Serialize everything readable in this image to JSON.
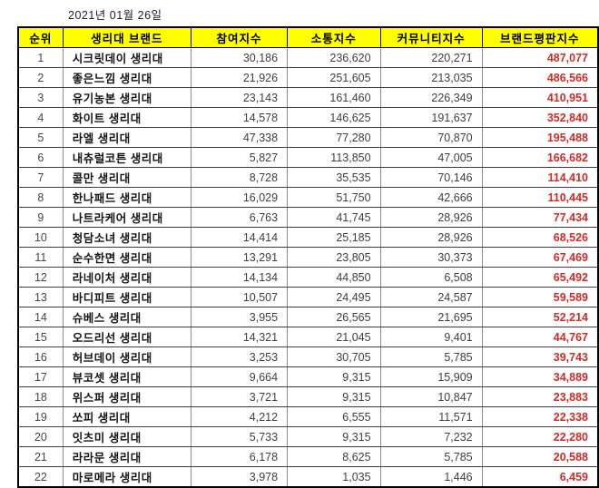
{
  "date_label": "2021년 01월 26일",
  "colors": {
    "header_bg": "#ffff00",
    "header_text": "#000000",
    "body_text": "#3f3f3f",
    "brand_text": "#141414",
    "reputation_red": "#cf2c26",
    "outer_border": "#000000"
  },
  "chart_data": {
    "type": "table",
    "title": "2021년 01월 26일 생리대 브랜드평판지수 순위",
    "columns": [
      "순위",
      "생리대 브랜드",
      "참여지수",
      "소통지수",
      "커뮤니티지수",
      "브랜드평판지수"
    ],
    "column_keys": [
      "rank",
      "brand",
      "participation",
      "communication",
      "community",
      "reputation"
    ],
    "rows": [
      {
        "rank": "1",
        "brand": "시크릿데이 생리대",
        "participation": "30,186",
        "communication": "236,620",
        "community": "220,271",
        "reputation": "487,077"
      },
      {
        "rank": "2",
        "brand": "좋은느낌 생리대",
        "participation": "21,926",
        "communication": "251,605",
        "community": "213,035",
        "reputation": "486,566"
      },
      {
        "rank": "3",
        "brand": "유기농본 생리대",
        "participation": "23,143",
        "communication": "161,460",
        "community": "226,349",
        "reputation": "410,951"
      },
      {
        "rank": "4",
        "brand": "화이트 생리대",
        "participation": "14,578",
        "communication": "146,625",
        "community": "191,637",
        "reputation": "352,840"
      },
      {
        "rank": "5",
        "brand": "라엘 생리대",
        "participation": "47,338",
        "communication": "77,280",
        "community": "70,870",
        "reputation": "195,488"
      },
      {
        "rank": "6",
        "brand": "내츄럴코튼 생리대",
        "participation": "5,827",
        "communication": "113,850",
        "community": "47,005",
        "reputation": "166,682"
      },
      {
        "rank": "7",
        "brand": "콜만 생리대",
        "participation": "8,728",
        "communication": "35,535",
        "community": "70,146",
        "reputation": "114,410"
      },
      {
        "rank": "8",
        "brand": "한나패드 생리대",
        "participation": "16,029",
        "communication": "51,750",
        "community": "42,666",
        "reputation": "110,445"
      },
      {
        "rank": "9",
        "brand": "나트라케어 생리대",
        "participation": "6,763",
        "communication": "41,745",
        "community": "28,926",
        "reputation": "77,434"
      },
      {
        "rank": "10",
        "brand": "청담소녀 생리대",
        "participation": "14,414",
        "communication": "25,185",
        "community": "28,926",
        "reputation": "68,526"
      },
      {
        "rank": "11",
        "brand": "순수한면 생리대",
        "participation": "13,291",
        "communication": "23,805",
        "community": "30,373",
        "reputation": "67,469"
      },
      {
        "rank": "12",
        "brand": "라네이처 생리대",
        "participation": "14,134",
        "communication": "44,850",
        "community": "6,508",
        "reputation": "65,492"
      },
      {
        "rank": "13",
        "brand": "바디피트 생리대",
        "participation": "10,507",
        "communication": "24,495",
        "community": "24,587",
        "reputation": "59,589"
      },
      {
        "rank": "14",
        "brand": "슈베스 생리대",
        "participation": "3,955",
        "communication": "26,565",
        "community": "21,695",
        "reputation": "52,214"
      },
      {
        "rank": "15",
        "brand": "오드리선 생리대",
        "participation": "14,321",
        "communication": "21,045",
        "community": "9,401",
        "reputation": "44,767"
      },
      {
        "rank": "16",
        "brand": "허브데이 생리대",
        "participation": "3,253",
        "communication": "30,705",
        "community": "5,785",
        "reputation": "39,743"
      },
      {
        "rank": "17",
        "brand": "뷰코셋 생리대",
        "participation": "9,664",
        "communication": "9,315",
        "community": "15,909",
        "reputation": "34,889"
      },
      {
        "rank": "18",
        "brand": "위스퍼 생리대",
        "participation": "3,721",
        "communication": "9,315",
        "community": "10,847",
        "reputation": "23,883"
      },
      {
        "rank": "19",
        "brand": "쏘피 생리대",
        "participation": "4,212",
        "communication": "6,555",
        "community": "11,571",
        "reputation": "22,338"
      },
      {
        "rank": "20",
        "brand": "잇츠미 생리대",
        "participation": "5,733",
        "communication": "9,315",
        "community": "7,232",
        "reputation": "22,280"
      },
      {
        "rank": "21",
        "brand": "라라문 생리대",
        "participation": "6,178",
        "communication": "8,625",
        "community": "5,785",
        "reputation": "20,588"
      },
      {
        "rank": "22",
        "brand": "마로메라 생리대",
        "participation": "3,978",
        "communication": "1,035",
        "community": "1,446",
        "reputation": "6,459"
      }
    ]
  }
}
